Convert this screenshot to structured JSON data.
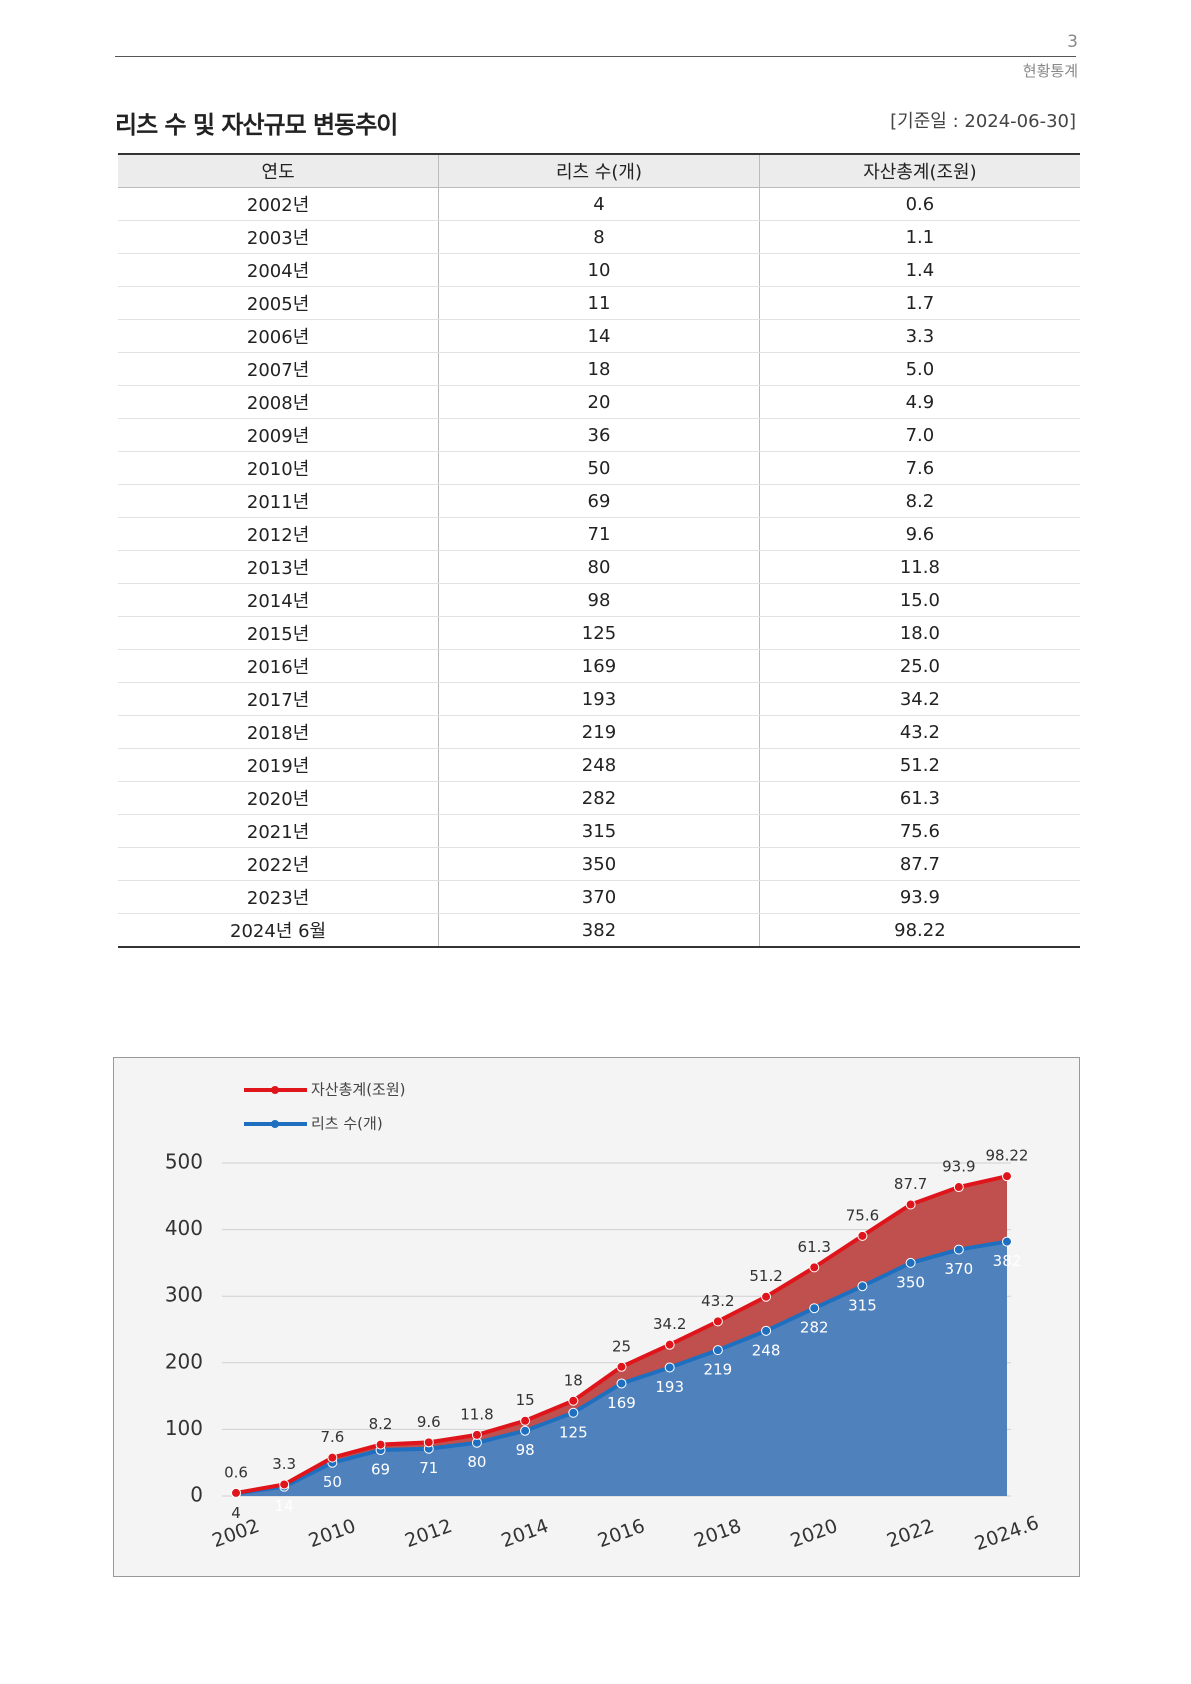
{
  "header": {
    "page_number": "3",
    "section": "현황통계"
  },
  "title": "리츠 수 및 자산규모 변동추이",
  "date_note": "[기준일 : 2024-06-30]",
  "table": {
    "columns": [
      "연도",
      "리츠 수(개)",
      "자산총계(조원)"
    ],
    "rows": [
      [
        "2002년",
        "4",
        "0.6"
      ],
      [
        "2003년",
        "8",
        "1.1"
      ],
      [
        "2004년",
        "10",
        "1.4"
      ],
      [
        "2005년",
        "11",
        "1.7"
      ],
      [
        "2006년",
        "14",
        "3.3"
      ],
      [
        "2007년",
        "18",
        "5.0"
      ],
      [
        "2008년",
        "20",
        "4.9"
      ],
      [
        "2009년",
        "36",
        "7.0"
      ],
      [
        "2010년",
        "50",
        "7.6"
      ],
      [
        "2011년",
        "69",
        "8.2"
      ],
      [
        "2012년",
        "71",
        "9.6"
      ],
      [
        "2013년",
        "80",
        "11.8"
      ],
      [
        "2014년",
        "98",
        "15.0"
      ],
      [
        "2015년",
        "125",
        "18.0"
      ],
      [
        "2016년",
        "169",
        "25.0"
      ],
      [
        "2017년",
        "193",
        "34.2"
      ],
      [
        "2018년",
        "219",
        "43.2"
      ],
      [
        "2019년",
        "248",
        "51.2"
      ],
      [
        "2020년",
        "282",
        "61.3"
      ],
      [
        "2021년",
        "315",
        "75.6"
      ],
      [
        "2022년",
        "350",
        "87.7"
      ],
      [
        "2023년",
        "370",
        "93.9"
      ],
      [
        "2024년 6월",
        "382",
        "98.22"
      ]
    ]
  },
  "chart_data": {
    "type": "stacked_area",
    "categories": [
      "2002",
      null,
      "2010",
      null,
      "2012",
      null,
      "2014",
      null,
      "2016",
      null,
      "2018",
      null,
      "2020",
      null,
      "2022",
      null,
      "2024.6"
    ],
    "series": [
      {
        "name": "자산총계(조원)",
        "color": "#e0141b",
        "area_color": "#c0504d",
        "values": [
          0.6,
          3.3,
          7.6,
          8.2,
          9.6,
          11.8,
          15,
          18,
          25,
          34.2,
          43.2,
          51.2,
          61.3,
          75.6,
          87.7,
          93.9,
          98.22
        ]
      },
      {
        "name": "리츠 수(개)",
        "color": "#1f6fc0",
        "area_color": "#4f81bd",
        "values": [
          4,
          14,
          50,
          69,
          71,
          80,
          98,
          125,
          169,
          193,
          219,
          248,
          282,
          315,
          350,
          370,
          382
        ]
      }
    ],
    "ylim": [
      0,
      500
    ],
    "yticks": [
      0,
      100,
      200,
      300,
      400,
      500
    ],
    "grid": true
  }
}
